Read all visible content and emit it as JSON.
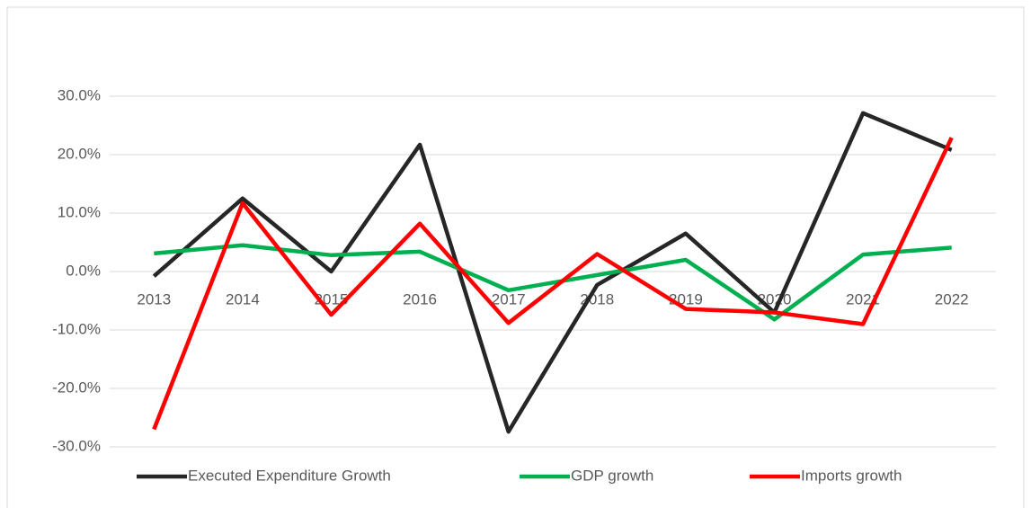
{
  "chart_data": {
    "type": "line",
    "categories": [
      "2013",
      "2014",
      "2015",
      "2016",
      "2017",
      "2018",
      "2019",
      "2020",
      "2021",
      "2022"
    ],
    "series": [
      {
        "name": "Executed Expenditure Growth",
        "color": "#262626",
        "values": [
          -0.8,
          12.5,
          0.0,
          21.7,
          -27.4,
          -2.3,
          6.5,
          -7.0,
          27.1,
          20.8
        ]
      },
      {
        "name": "GDP growth",
        "color": "#00b050",
        "values": [
          3.1,
          4.5,
          2.8,
          3.4,
          -3.2,
          -0.6,
          2.0,
          -8.2,
          2.9,
          4.1
        ]
      },
      {
        "name": "Imports growth",
        "color": "#ff0000",
        "values": [
          -27.0,
          11.7,
          -7.4,
          8.2,
          -8.8,
          3.0,
          -6.4,
          -7.0,
          -9.0,
          22.9
        ]
      }
    ],
    "ylim": [
      -30,
      30
    ],
    "yticks": [
      {
        "value": -30,
        "label": "-30.0%"
      },
      {
        "value": -20,
        "label": "-20.0%"
      },
      {
        "value": -10,
        "label": "-10.0%"
      },
      {
        "value": 0,
        "label": "0.0%"
      },
      {
        "value": 10,
        "label": "10.0%"
      },
      {
        "value": 20,
        "label": "20.0%"
      },
      {
        "value": 30,
        "label": "30.0%"
      }
    ],
    "grid": true,
    "legend": "bottom"
  }
}
